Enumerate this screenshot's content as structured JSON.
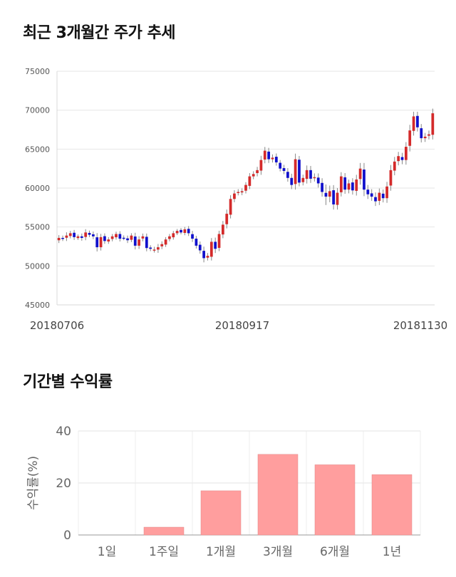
{
  "titles": {
    "price_trend": "최근 3개월간 주가 추세",
    "returns": "기간별 수익률"
  },
  "chart_data": [
    {
      "type": "candlestick",
      "title": "최근 3개월간 주가 추세",
      "ylim": [
        45000,
        75000
      ],
      "yticks": [
        "75000",
        "70000",
        "65000",
        "60000",
        "55000",
        "50000",
        "45000"
      ],
      "xtick_labels": [
        "20180706",
        "20180917",
        "20181130"
      ],
      "grid": true,
      "up_color": "#d42a2a",
      "down_color": "#1010cc",
      "close_series": [
        53600,
        53500,
        53900,
        54200,
        53700,
        53800,
        53600,
        54300,
        54000,
        53800,
        52400,
        53700,
        53200,
        53400,
        53800,
        54100,
        53500,
        53600,
        53300,
        53900,
        52600,
        53400,
        53800,
        52300,
        52200,
        52100,
        52400,
        52800,
        53400,
        53800,
        54200,
        54500,
        54300,
        54700,
        54200,
        53500,
        52600,
        52000,
        51000,
        51300,
        53100,
        52200,
        54100,
        55300,
        56700,
        58600,
        59300,
        59500,
        59600,
        60400,
        61500,
        61800,
        62300,
        63600,
        64800,
        63700,
        63900,
        63300,
        62500,
        62200,
        61300,
        60400,
        63700,
        60700,
        61300,
        62300,
        61200,
        61400,
        60600,
        59500,
        58900,
        59600,
        57900,
        59400,
        61500,
        59800,
        60600,
        59700,
        61100,
        62500,
        59800,
        59200,
        58900,
        58300,
        59400,
        58700,
        60200,
        62300,
        63400,
        64100,
        63600,
        65300,
        67400,
        69200,
        67800,
        66400,
        66600,
        66900,
        69600
      ],
      "volatility": [
        600,
        500,
        700,
        500,
        600,
        400,
        600,
        700,
        500,
        600,
        900,
        700,
        600,
        500,
        500,
        500,
        600,
        500,
        600,
        500,
        800,
        700,
        600,
        700,
        500,
        600,
        700,
        600,
        500,
        500,
        500,
        400,
        400,
        500,
        600,
        700,
        600,
        700,
        900,
        600,
        800,
        900,
        700,
        800,
        900,
        800,
        700,
        600,
        600,
        600,
        700,
        600,
        700,
        900,
        800,
        800,
        700,
        700,
        600,
        700,
        800,
        900,
        1200,
        800,
        700,
        1000,
        900,
        800,
        900,
        1000,
        1800,
        1200,
        1100,
        1000,
        900,
        900,
        800,
        900,
        1000,
        1200,
        1400,
        1000,
        900,
        1000,
        900,
        900,
        1000,
        1100,
        1000,
        900,
        900,
        1000,
        1200,
        1000,
        900,
        900,
        800,
        800,
        1000
      ]
    },
    {
      "type": "bar",
      "title": "기간별 수익률",
      "categories": [
        "1일",
        "1주일",
        "1개월",
        "3개월",
        "6개월",
        "1년"
      ],
      "values": [
        0,
        3.0,
        17.0,
        31.0,
        27.0,
        23.2
      ],
      "ylabel": "수익률(%)",
      "ylim": [
        0,
        40
      ],
      "yticks": [
        "0",
        "20",
        "40"
      ],
      "bar_color": "#ff9e9e",
      "grid": true
    }
  ]
}
